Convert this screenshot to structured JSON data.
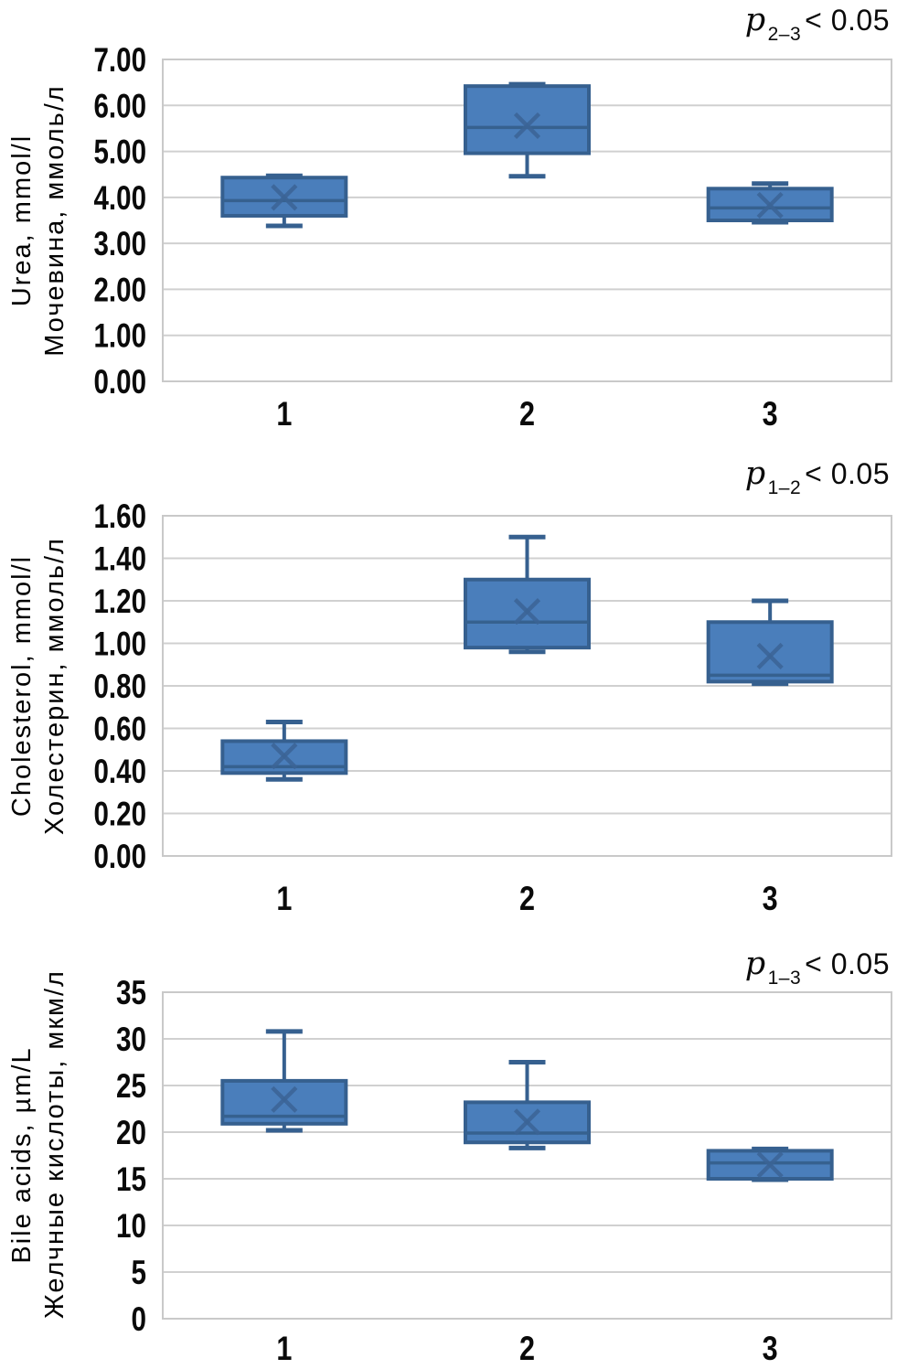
{
  "figure": {
    "background": "#ffffff",
    "box_fill": "#4a7ebb",
    "box_stroke": "#36608f",
    "median_color": "#36618f",
    "mean_marker_color": "#3b6496",
    "grid_color": "#d0d0d0",
    "plot_border_color": "#c9c9c9",
    "text_color": "#0a0a0a"
  },
  "chart_data": [
    {
      "type": "box",
      "title_en": "Urea, mmol/l",
      "title_ru": "Мочевина, ммоль/л",
      "annotation": {
        "p": "p",
        "sub": "2–3",
        "rest": "< 0.05"
      },
      "categories": [
        "1",
        "2",
        "3"
      ],
      "ylim": [
        0,
        7
      ],
      "ystep": 1,
      "ydecimals": 2,
      "grid": true,
      "legend": false,
      "series": [
        {
          "category": "1",
          "min": 3.38,
          "q1": 3.6,
          "median": 3.93,
          "q3": 4.43,
          "max": 4.47,
          "mean": 4.0
        },
        {
          "category": "2",
          "min": 4.46,
          "q1": 4.96,
          "median": 5.52,
          "q3": 6.42,
          "max": 6.46,
          "mean": 5.56
        },
        {
          "category": "3",
          "min": 3.46,
          "q1": 3.5,
          "median": 3.77,
          "q3": 4.19,
          "max": 4.3,
          "mean": 3.83
        }
      ]
    },
    {
      "type": "box",
      "title_en": "Cholesterol, mmol/l",
      "title_ru": "Холестерин, ммоль/л",
      "annotation": {
        "p": "p",
        "sub": "1–2",
        "rest": "< 0.05"
      },
      "categories": [
        "1",
        "2",
        "3"
      ],
      "ylim": [
        0,
        1.6
      ],
      "ystep": 0.2,
      "ydecimals": 2,
      "grid": true,
      "legend": false,
      "series": [
        {
          "category": "1",
          "min": 0.36,
          "q1": 0.39,
          "median": 0.42,
          "q3": 0.54,
          "max": 0.63,
          "mean": 0.47
        },
        {
          "category": "2",
          "min": 0.96,
          "q1": 0.98,
          "median": 1.1,
          "q3": 1.3,
          "max": 1.5,
          "mean": 1.15
        },
        {
          "category": "3",
          "min": 0.81,
          "q1": 0.82,
          "median": 0.85,
          "q3": 1.1,
          "max": 1.2,
          "mean": 0.94
        }
      ]
    },
    {
      "type": "box",
      "title_en": "Bile acids, µm/L",
      "title_ru": "Желчные кислоты, мкм/л",
      "annotation": {
        "p": "p",
        "sub": "1–3",
        "rest": "< 0.05"
      },
      "categories": [
        "1",
        "2",
        "3"
      ],
      "ylim": [
        0,
        35
      ],
      "ystep": 5,
      "ydecimals": 0,
      "grid": true,
      "legend": false,
      "series": [
        {
          "category": "1",
          "min": 20.2,
          "q1": 20.9,
          "median": 21.7,
          "q3": 25.5,
          "max": 30.8,
          "mean": 23.5
        },
        {
          "category": "2",
          "min": 18.3,
          "q1": 18.9,
          "median": 19.9,
          "q3": 23.2,
          "max": 27.5,
          "mean": 21.1
        },
        {
          "category": "3",
          "min": 14.9,
          "q1": 15.0,
          "median": 16.7,
          "q3": 18.0,
          "max": 18.2,
          "mean": 16.5
        }
      ]
    }
  ]
}
